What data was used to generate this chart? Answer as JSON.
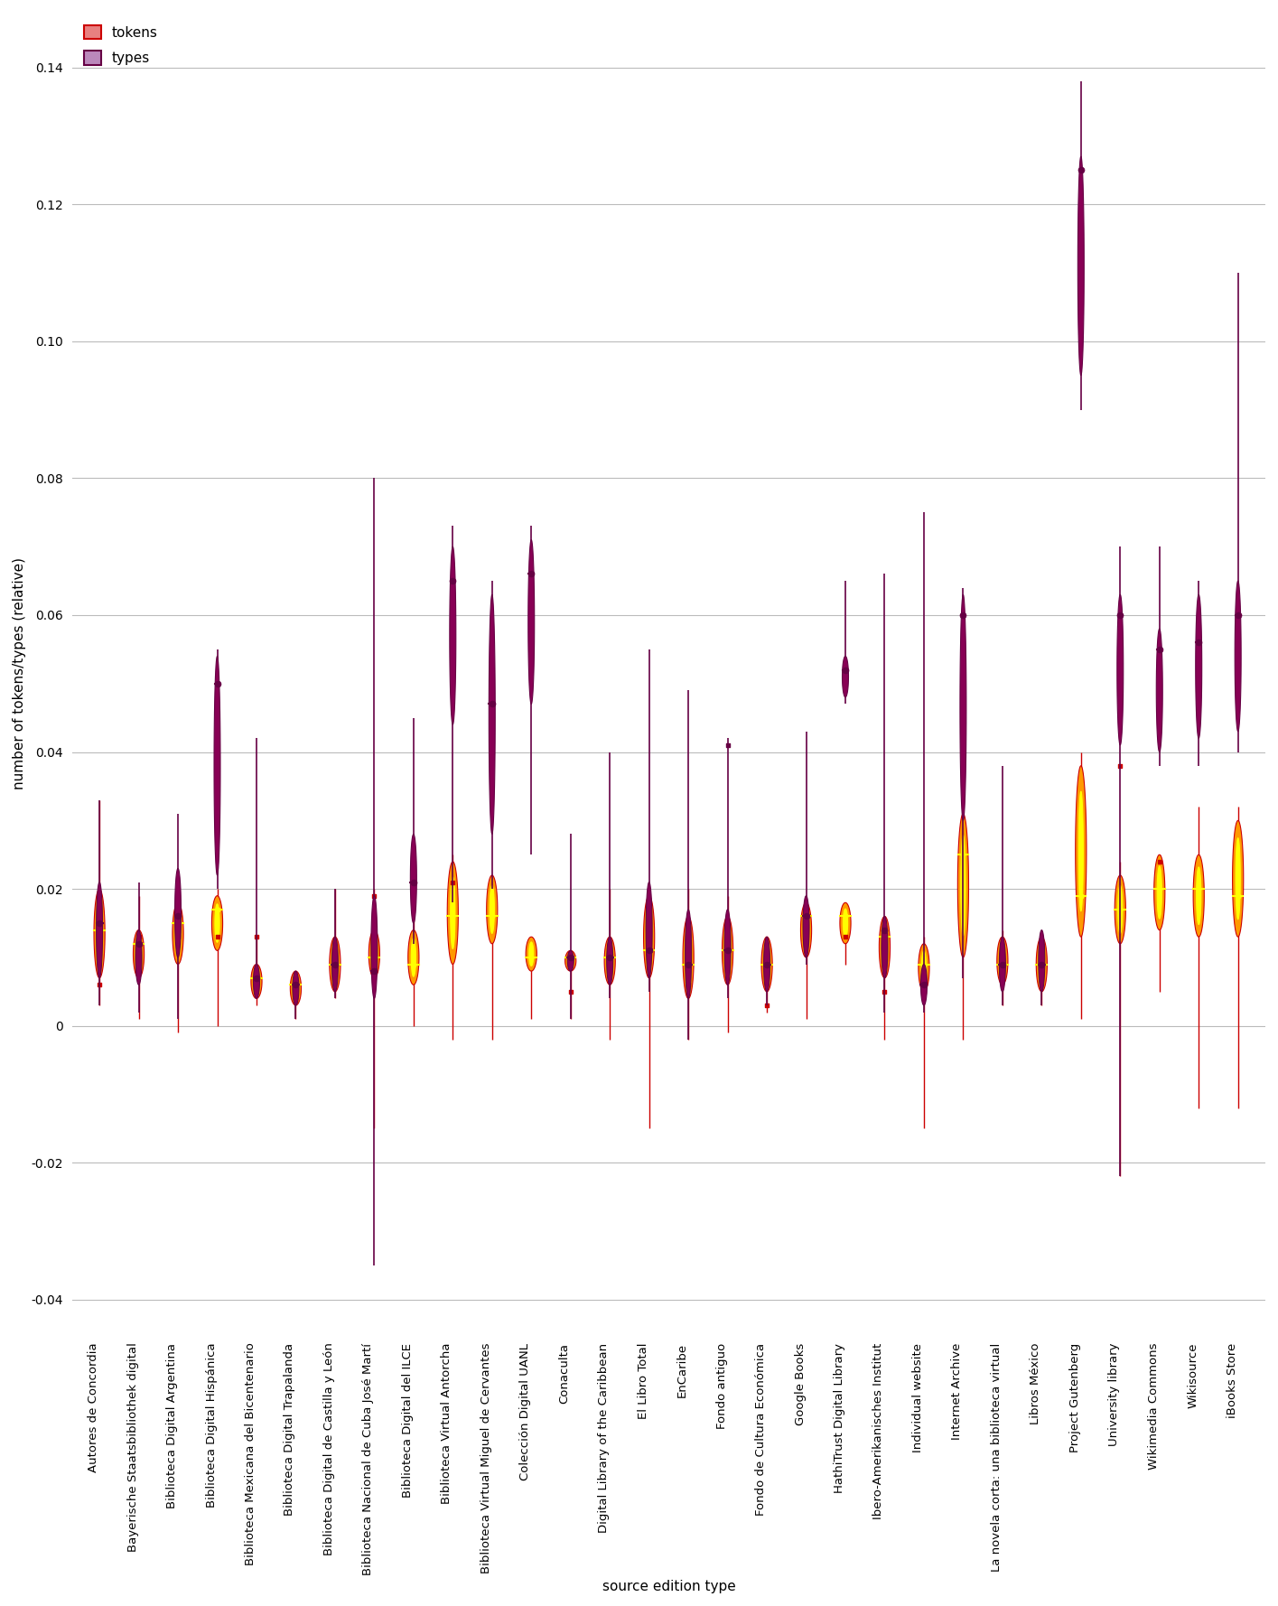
{
  "xlabel": "source edition type",
  "ylabel": "number of tokens/types (relative)",
  "ylim": [
    -0.045,
    0.148
  ],
  "yticks": [
    -0.04,
    -0.02,
    0.0,
    0.02,
    0.04,
    0.06,
    0.08,
    0.1,
    0.12,
    0.14
  ],
  "categories": [
    "Autores de Concordia",
    "Bayerische Staatsbibliothek digital",
    "Biblioteca Digital Argentina",
    "Biblioteca Digital Hispánica",
    "Biblioteca Mexicana del Bicentenario",
    "Biblioteca Digital Trapalanda",
    "Biblioteca Digital de Castilla y León",
    "Biblioteca Nacional de Cuba José Martí",
    "Biblioteca Digital del ILCE",
    "Biblioteca Virtual Antorcha",
    "Biblioteca Virtual Miguel de Cervantes",
    "Colección Digital UANL",
    "Conaculta",
    "Digital Library of the Caribbean",
    "El Libro Total",
    "EnCaribe",
    "Fondo antiguo",
    "Fondo de Cultura Económica",
    "Google Books",
    "HathiTrust Digital Library",
    "Ibero-Amerikanisches Institut",
    "Individual website",
    "Internet Archive",
    "La novela corta: una biblioteca virtual",
    "Libros México",
    "Project Gutenberg",
    "University library",
    "Wikimedia Commons",
    "Wikisource",
    "iBooks Store"
  ],
  "tokens_data": {
    "Autores de Concordia": {
      "median": 0.014,
      "q1": 0.007,
      "q3": 0.02,
      "wl": 0.003,
      "wh": 0.033,
      "ol": [
        0.006
      ],
      "oh": []
    },
    "Bayerische Staatsbibliothek digital": {
      "median": 0.012,
      "q1": 0.007,
      "q3": 0.014,
      "wl": 0.001,
      "wh": 0.019,
      "ol": [],
      "oh": [
        0.013
      ]
    },
    "Biblioteca Digital Argentina": {
      "median": 0.015,
      "q1": 0.009,
      "q3": 0.018,
      "wl": -0.001,
      "wh": 0.022,
      "ol": [],
      "oh": [
        0.013
      ]
    },
    "Biblioteca Digital Hispánica": {
      "median": 0.017,
      "q1": 0.011,
      "q3": 0.019,
      "wl": 0.0,
      "wh": 0.02,
      "ol": [],
      "oh": [
        0.013
      ]
    },
    "Biblioteca Mexicana del Bicentenario": {
      "median": 0.007,
      "q1": 0.004,
      "q3": 0.009,
      "wl": 0.003,
      "wh": 0.013,
      "ol": [
        0.013
      ],
      "oh": []
    },
    "Biblioteca Digital Trapalanda": {
      "median": 0.006,
      "q1": 0.003,
      "q3": 0.008,
      "wl": 0.001,
      "wh": 0.008,
      "ol": [],
      "oh": []
    },
    "Biblioteca Digital de Castilla y León": {
      "median": 0.009,
      "q1": 0.005,
      "q3": 0.013,
      "wl": 0.004,
      "wh": 0.02,
      "ol": [],
      "oh": []
    },
    "Biblioteca Nacional de Cuba José Martí": {
      "median": 0.01,
      "q1": 0.007,
      "q3": 0.014,
      "wl": -0.015,
      "wh": 0.02,
      "ol": [],
      "oh": [
        0.019
      ]
    },
    "Biblioteca Digital del ILCE": {
      "median": 0.009,
      "q1": 0.006,
      "q3": 0.014,
      "wl": 0.0,
      "wh": 0.022,
      "ol": [],
      "oh": []
    },
    "Biblioteca Virtual Antorcha": {
      "median": 0.016,
      "q1": 0.009,
      "q3": 0.024,
      "wl": -0.002,
      "wh": 0.025,
      "ol": [],
      "oh": [
        0.021
      ]
    },
    "Biblioteca Virtual Miguel de Cervantes": {
      "median": 0.016,
      "q1": 0.012,
      "q3": 0.022,
      "wl": -0.002,
      "wh": 0.022,
      "ol": [],
      "oh": []
    },
    "Colección Digital UANL": {
      "median": 0.01,
      "q1": 0.008,
      "q3": 0.013,
      "wl": 0.001,
      "wh": 0.011,
      "ol": [],
      "oh": []
    },
    "Conaculta": {
      "median": 0.01,
      "q1": 0.008,
      "q3": 0.011,
      "wl": 0.001,
      "wh": 0.011,
      "ol": [
        0.005
      ],
      "oh": []
    },
    "Digital Library of the Caribbean": {
      "median": 0.01,
      "q1": 0.006,
      "q3": 0.013,
      "wl": -0.002,
      "wh": 0.02,
      "ol": [],
      "oh": []
    },
    "El Libro Total": {
      "median": 0.011,
      "q1": 0.007,
      "q3": 0.019,
      "wl": -0.015,
      "wh": 0.019,
      "ol": [],
      "oh": []
    },
    "EnCaribe": {
      "median": 0.009,
      "q1": 0.004,
      "q3": 0.016,
      "wl": -0.002,
      "wh": 0.02,
      "ol": [
        0.006
      ],
      "oh": []
    },
    "Fondo antiguo": {
      "median": 0.011,
      "q1": 0.006,
      "q3": 0.016,
      "wl": -0.001,
      "wh": 0.019,
      "ol": [],
      "oh": []
    },
    "Fondo de Cultura Económica": {
      "median": 0.009,
      "q1": 0.005,
      "q3": 0.013,
      "wl": 0.002,
      "wh": 0.01,
      "ol": [
        0.003
      ],
      "oh": []
    },
    "Google Books": {
      "median": 0.016,
      "q1": 0.01,
      "q3": 0.018,
      "wl": 0.001,
      "wh": 0.017,
      "ol": [],
      "oh": []
    },
    "HathiTrust Digital Library": {
      "median": 0.016,
      "q1": 0.012,
      "q3": 0.018,
      "wl": 0.009,
      "wh": 0.017,
      "ol": [],
      "oh": [
        0.013
      ]
    },
    "Ibero-Amerikanisches Institut": {
      "median": 0.013,
      "q1": 0.007,
      "q3": 0.016,
      "wl": -0.002,
      "wh": 0.016,
      "ol": [
        0.005
      ],
      "oh": []
    },
    "Individual website": {
      "median": 0.009,
      "q1": 0.005,
      "q3": 0.012,
      "wl": -0.015,
      "wh": 0.013,
      "ol": [],
      "oh": [
        0.005
      ]
    },
    "Internet Archive": {
      "median": 0.025,
      "q1": 0.01,
      "q3": 0.031,
      "wl": -0.002,
      "wh": 0.03,
      "ol": [],
      "oh": []
    },
    "La novela corta: una biblioteca virtual": {
      "median": 0.009,
      "q1": 0.006,
      "q3": 0.013,
      "wl": 0.003,
      "wh": 0.014,
      "ol": [],
      "oh": []
    },
    "Libros México": {
      "median": 0.009,
      "q1": 0.005,
      "q3": 0.013,
      "wl": 0.003,
      "wh": 0.007,
      "ol": [],
      "oh": []
    },
    "Project Gutenberg": {
      "median": 0.019,
      "q1": 0.013,
      "q3": 0.038,
      "wl": 0.001,
      "wh": 0.04,
      "ol": [],
      "oh": []
    },
    "University library": {
      "median": 0.017,
      "q1": 0.012,
      "q3": 0.022,
      "wl": -0.022,
      "wh": 0.024,
      "ol": [],
      "oh": [
        0.038
      ]
    },
    "Wikimedia Commons": {
      "median": 0.02,
      "q1": 0.014,
      "q3": 0.025,
      "wl": 0.005,
      "wh": 0.025,
      "ol": [],
      "oh": [
        0.024
      ]
    },
    "Wikisource": {
      "median": 0.02,
      "q1": 0.013,
      "q3": 0.025,
      "wl": -0.012,
      "wh": 0.032,
      "ol": [],
      "oh": []
    },
    "iBooks Store": {
      "median": 0.019,
      "q1": 0.013,
      "q3": 0.03,
      "wl": -0.012,
      "wh": 0.032,
      "ol": [],
      "oh": []
    }
  },
  "types_data": {
    "Autores de Concordia": {
      "median": 0.015,
      "q1": 0.007,
      "q3": 0.021,
      "wl": 0.003,
      "wh": 0.033,
      "ol": [],
      "oh": []
    },
    "Bayerische Staatsbibliothek digital": {
      "median": 0.012,
      "q1": 0.006,
      "q3": 0.014,
      "wl": 0.002,
      "wh": 0.021,
      "ol": [],
      "oh": []
    },
    "Biblioteca Digital Argentina": {
      "median": 0.016,
      "q1": 0.01,
      "q3": 0.023,
      "wl": 0.001,
      "wh": 0.031,
      "ol": [],
      "oh": []
    },
    "Biblioteca Digital Hispánica": {
      "median": 0.05,
      "q1": 0.022,
      "q3": 0.054,
      "wl": 0.02,
      "wh": 0.055,
      "ol": [],
      "oh": []
    },
    "Biblioteca Mexicana del Bicentenario": {
      "median": 0.007,
      "q1": 0.004,
      "q3": 0.009,
      "wl": 0.004,
      "wh": 0.042,
      "ol": [],
      "oh": []
    },
    "Biblioteca Digital Trapalanda": {
      "median": 0.006,
      "q1": 0.003,
      "q3": 0.008,
      "wl": 0.001,
      "wh": 0.008,
      "ol": [],
      "oh": []
    },
    "Biblioteca Digital de Castilla y León": {
      "median": 0.009,
      "q1": 0.005,
      "q3": 0.013,
      "wl": 0.004,
      "wh": 0.02,
      "ol": [],
      "oh": []
    },
    "Biblioteca Nacional de Cuba José Martí": {
      "median": 0.008,
      "q1": 0.004,
      "q3": 0.019,
      "wl": -0.035,
      "wh": 0.08,
      "ol": [],
      "oh": []
    },
    "Biblioteca Digital del ILCE": {
      "median": 0.021,
      "q1": 0.015,
      "q3": 0.028,
      "wl": 0.012,
      "wh": 0.045,
      "ol": [],
      "oh": []
    },
    "Biblioteca Virtual Antorcha": {
      "median": 0.065,
      "q1": 0.044,
      "q3": 0.07,
      "wl": 0.018,
      "wh": 0.073,
      "ol": [],
      "oh": []
    },
    "Biblioteca Virtual Miguel de Cervantes": {
      "median": 0.047,
      "q1": 0.028,
      "q3": 0.063,
      "wl": 0.02,
      "wh": 0.065,
      "ol": [],
      "oh": []
    },
    "Colección Digital UANL": {
      "median": 0.066,
      "q1": 0.047,
      "q3": 0.071,
      "wl": 0.025,
      "wh": 0.073,
      "ol": [],
      "oh": []
    },
    "Conaculta": {
      "median": 0.01,
      "q1": 0.008,
      "q3": 0.011,
      "wl": 0.001,
      "wh": 0.028,
      "ol": [],
      "oh": []
    },
    "Digital Library of the Caribbean": {
      "median": 0.01,
      "q1": 0.006,
      "q3": 0.013,
      "wl": 0.004,
      "wh": 0.04,
      "ol": [],
      "oh": []
    },
    "El Libro Total": {
      "median": 0.011,
      "q1": 0.007,
      "q3": 0.021,
      "wl": 0.005,
      "wh": 0.055,
      "ol": [],
      "oh": []
    },
    "EnCaribe": {
      "median": 0.009,
      "q1": 0.004,
      "q3": 0.017,
      "wl": -0.002,
      "wh": 0.049,
      "ol": [],
      "oh": []
    },
    "Fondo antiguo": {
      "median": 0.011,
      "q1": 0.006,
      "q3": 0.017,
      "wl": 0.004,
      "wh": 0.042,
      "ol": [
        0.041
      ],
      "oh": []
    },
    "Fondo de Cultura Económica": {
      "median": 0.009,
      "q1": 0.005,
      "q3": 0.013,
      "wl": 0.003,
      "wh": 0.01,
      "ol": [],
      "oh": []
    },
    "Google Books": {
      "median": 0.016,
      "q1": 0.01,
      "q3": 0.019,
      "wl": 0.009,
      "wh": 0.043,
      "ol": [],
      "oh": []
    },
    "HathiTrust Digital Library": {
      "median": 0.052,
      "q1": 0.048,
      "q3": 0.054,
      "wl": 0.047,
      "wh": 0.065,
      "ol": [],
      "oh": []
    },
    "Ibero-Amerikanisches Institut": {
      "median": 0.014,
      "q1": 0.007,
      "q3": 0.016,
      "wl": 0.002,
      "wh": 0.066,
      "ol": [],
      "oh": []
    },
    "Individual website": {
      "median": 0.006,
      "q1": 0.003,
      "q3": 0.009,
      "wl": 0.002,
      "wh": 0.075,
      "ol": [],
      "oh": []
    },
    "Internet Archive": {
      "median": 0.06,
      "q1": 0.03,
      "q3": 0.063,
      "wl": 0.007,
      "wh": 0.064,
      "ol": [],
      "oh": []
    },
    "La novela corta: una biblioteca virtual": {
      "median": 0.009,
      "q1": 0.005,
      "q3": 0.013,
      "wl": 0.003,
      "wh": 0.038,
      "ol": [],
      "oh": []
    },
    "Libros México": {
      "median": 0.009,
      "q1": 0.005,
      "q3": 0.014,
      "wl": 0.003,
      "wh": 0.007,
      "ol": [],
      "oh": []
    },
    "Project Gutenberg": {
      "median": 0.125,
      "q1": 0.095,
      "q3": 0.127,
      "wl": 0.09,
      "wh": 0.138,
      "ol": [],
      "oh": []
    },
    "University library": {
      "median": 0.06,
      "q1": 0.041,
      "q3": 0.063,
      "wl": -0.022,
      "wh": 0.07,
      "ol": [],
      "oh": []
    },
    "Wikimedia Commons": {
      "median": 0.055,
      "q1": 0.04,
      "q3": 0.058,
      "wl": 0.038,
      "wh": 0.07,
      "ol": [],
      "oh": []
    },
    "Wikisource": {
      "median": 0.056,
      "q1": 0.042,
      "q3": 0.063,
      "wl": 0.038,
      "wh": 0.065,
      "ol": [],
      "oh": []
    },
    "iBooks Store": {
      "median": 0.06,
      "q1": 0.043,
      "q3": 0.065,
      "wl": 0.04,
      "wh": 0.11,
      "ol": [],
      "oh": []
    }
  },
  "token_line_color": "#cc0000",
  "token_body_color": "#ff9900",
  "token_center_color": "#ffff00",
  "token_median_color": "#ffff00",
  "token_outlier_color": "#cc0000",
  "types_line_color": "#660044",
  "types_body_color": "#880055",
  "types_median_color": "#660044",
  "types_outlier_color": "#660044",
  "grid_color": "#bbbbbb",
  "legend_token_face": "#e88080",
  "legend_token_edge": "#cc0000",
  "legend_types_face": "#bb88bb",
  "legend_types_edge": "#660044"
}
